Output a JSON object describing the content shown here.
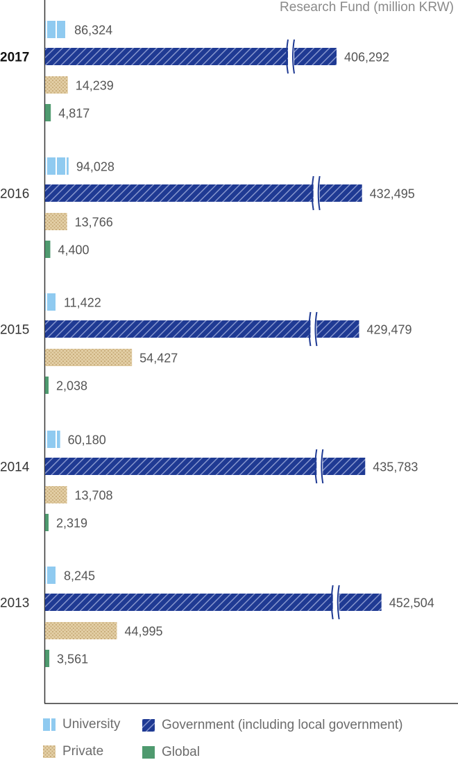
{
  "chart_data": {
    "type": "bar",
    "orientation": "horizontal",
    "unit_label": "Research Fund (million KRW)",
    "categories": [
      "2017",
      "2016",
      "2015",
      "2014",
      "2013"
    ],
    "highlighted_category": "2017",
    "axis_break": true,
    "series": [
      {
        "name": "University",
        "values": [
          86324,
          94028,
          11422,
          60180,
          8245
        ],
        "color": "#7fbfe6"
      },
      {
        "name": "Government (including local government)",
        "values": [
          406292,
          432495,
          429479,
          435783,
          452504
        ],
        "color": "#1f3a93"
      },
      {
        "name": "Private",
        "values": [
          14239,
          13766,
          54427,
          13708,
          44995
        ],
        "color": "#d9c29a"
      },
      {
        "name": "Global",
        "values": [
          4817,
          4400,
          2038,
          2319,
          3561
        ],
        "color": "#4f9a6f"
      }
    ],
    "value_labels": [
      [
        "86,324",
        "406,292",
        "14,239",
        "4,817"
      ],
      [
        "94,028",
        "432,495",
        "13,766",
        "4,400"
      ],
      [
        "11,422",
        "429,479",
        "54,427",
        "2,038"
      ],
      [
        "60,180",
        "435,783",
        "13,708",
        "2,319"
      ],
      [
        "8,245",
        "452,504",
        "44,995",
        "3,561"
      ]
    ],
    "legend": [
      "University",
      "Government (including local government)",
      "Private",
      "Global"
    ]
  }
}
